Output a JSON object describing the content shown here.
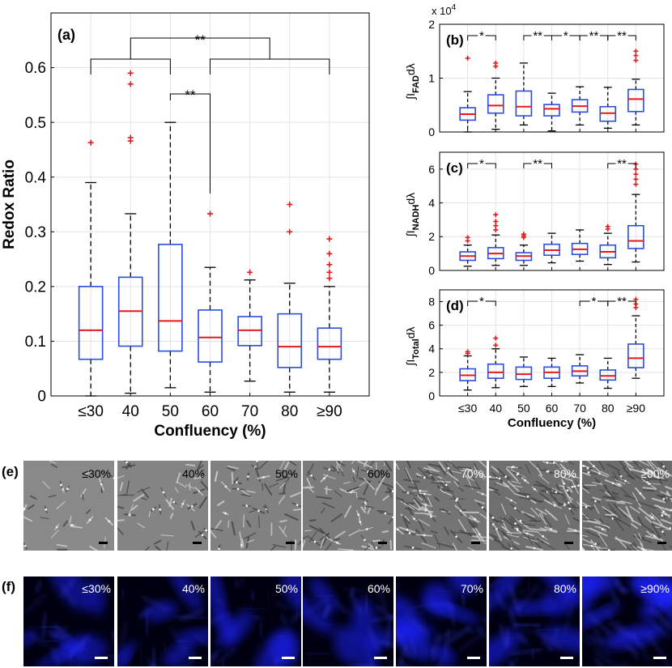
{
  "chart_data": [
    {
      "id": "a",
      "type": "boxplot",
      "panel_label": "(a)",
      "xlabel": "Confluency (%)",
      "ylabel": "Redox Ratio",
      "categories": [
        "≤30",
        "40",
        "50",
        "60",
        "70",
        "80",
        "≥90"
      ],
      "ylim": [
        0,
        0.7
      ],
      "yticks": [
        "0",
        "0.1",
        "0.2",
        "0.3",
        "0.4",
        "0.5",
        "0.6"
      ],
      "boxes": [
        {
          "q1": 0.067,
          "median": 0.12,
          "q3": 0.2,
          "lo": 0.0,
          "hi": 0.39,
          "outliers": [
            0.463
          ]
        },
        {
          "q1": 0.091,
          "median": 0.155,
          "q3": 0.217,
          "lo": 0.005,
          "hi": 0.333,
          "outliers": [
            0.466,
            0.472,
            0.57,
            0.59
          ]
        },
        {
          "q1": 0.082,
          "median": 0.137,
          "q3": 0.277,
          "lo": 0.015,
          "hi": 0.5,
          "outliers": []
        },
        {
          "q1": 0.062,
          "median": 0.107,
          "q3": 0.157,
          "lo": 0.007,
          "hi": 0.235,
          "outliers": [
            0.333
          ]
        },
        {
          "q1": 0.092,
          "median": 0.12,
          "q3": 0.145,
          "lo": 0.027,
          "hi": 0.212,
          "outliers": [
            0.226
          ]
        },
        {
          "q1": 0.052,
          "median": 0.09,
          "q3": 0.15,
          "lo": 0.007,
          "hi": 0.206,
          "outliers": [
            0.3,
            0.35
          ]
        },
        {
          "q1": 0.067,
          "median": 0.09,
          "q3": 0.124,
          "lo": 0.007,
          "hi": 0.2,
          "outliers": [
            0.215,
            0.226,
            0.24,
            0.26,
            0.287
          ]
        }
      ],
      "significance": [
        {
          "from": 0,
          "to": 2,
          "label": "**"
        },
        {
          "from": 3,
          "to": 6,
          "label": "**"
        },
        {
          "from": 2,
          "to": 3,
          "label": "**"
        }
      ]
    },
    {
      "id": "b",
      "type": "boxplot",
      "panel_label": "(b)",
      "ylabel_main": "∫I",
      "ylabel_sub": "FAD",
      "ylabel_tail": "dλ",
      "exponent_label": "x 10",
      "exponent_power": "4",
      "categories": [
        "≤30",
        "40",
        "50",
        "60",
        "70",
        "80",
        "≥90"
      ],
      "ylim": [
        0,
        2
      ],
      "yticks": [
        "0",
        "1",
        "2"
      ],
      "boxes": [
        {
          "q1": 0.22,
          "median": 0.33,
          "q3": 0.45,
          "lo": 0.0,
          "hi": 0.75,
          "outliers": [
            1.37
          ]
        },
        {
          "q1": 0.35,
          "median": 0.49,
          "q3": 0.69,
          "lo": 0.05,
          "hi": 1.0,
          "outliers": [
            1.22,
            1.28
          ]
        },
        {
          "q1": 0.3,
          "median": 0.47,
          "q3": 0.76,
          "lo": 0.13,
          "hi": 1.28,
          "outliers": []
        },
        {
          "q1": 0.3,
          "median": 0.43,
          "q3": 0.51,
          "lo": 0.02,
          "hi": 0.72,
          "outliers": []
        },
        {
          "q1": 0.37,
          "median": 0.48,
          "q3": 0.6,
          "lo": 0.13,
          "hi": 0.84,
          "outliers": []
        },
        {
          "q1": 0.2,
          "median": 0.35,
          "q3": 0.47,
          "lo": 0.07,
          "hi": 0.83,
          "outliers": []
        },
        {
          "q1": 0.38,
          "median": 0.61,
          "q3": 0.79,
          "lo": 0.13,
          "hi": 0.98,
          "outliers": [
            1.33,
            1.42,
            1.5
          ]
        }
      ],
      "significance": [
        {
          "from": 0,
          "to": 1,
          "label": "*"
        },
        {
          "from": 2,
          "to": 3,
          "label": "**"
        },
        {
          "from": 3,
          "to": 4,
          "label": "*"
        },
        {
          "from": 4,
          "to": 5,
          "label": "**"
        },
        {
          "from": 5,
          "to": 6,
          "label": "**"
        }
      ]
    },
    {
      "id": "c",
      "type": "boxplot",
      "panel_label": "(c)",
      "ylabel_main": "∫I",
      "ylabel_sub": "NADH",
      "ylabel_tail": "dλ",
      "categories": [
        "≤30",
        "40",
        "50",
        "60",
        "70",
        "80",
        "≥90"
      ],
      "ylim": [
        0,
        7
      ],
      "yticks": [
        "0",
        "2",
        "4",
        "6"
      ],
      "boxes": [
        {
          "q1": 0.6,
          "median": 0.85,
          "q3": 1.1,
          "lo": 0.25,
          "hi": 1.5,
          "outliers": [
            1.75,
            1.95
          ]
        },
        {
          "q1": 0.7,
          "median": 1.0,
          "q3": 1.35,
          "lo": 0.3,
          "hi": 2.1,
          "outliers": [
            2.4,
            2.65,
            2.9,
            3.3
          ]
        },
        {
          "q1": 0.6,
          "median": 0.85,
          "q3": 1.05,
          "lo": 0.3,
          "hi": 1.5,
          "outliers": [
            1.95,
            2.05,
            2.15
          ]
        },
        {
          "q1": 0.9,
          "median": 1.2,
          "q3": 1.55,
          "lo": 0.45,
          "hi": 2.2,
          "outliers": []
        },
        {
          "q1": 0.95,
          "median": 1.25,
          "q3": 1.6,
          "lo": 0.55,
          "hi": 2.4,
          "outliers": []
        },
        {
          "q1": 0.75,
          "median": 1.1,
          "q3": 1.5,
          "lo": 0.35,
          "hi": 2.2,
          "outliers": [
            2.45,
            2.6
          ]
        },
        {
          "q1": 1.3,
          "median": 1.75,
          "q3": 2.65,
          "lo": 0.5,
          "hi": 4.5,
          "outliers": [
            5.1,
            5.4,
            5.7,
            6.0,
            6.3
          ]
        }
      ],
      "significance": [
        {
          "from": 0,
          "to": 1,
          "label": "*"
        },
        {
          "from": 2,
          "to": 3,
          "label": "**"
        },
        {
          "from": 5,
          "to": 6,
          "label": "**"
        }
      ]
    },
    {
      "id": "d",
      "type": "boxplot",
      "panel_label": "(d)",
      "ylabel_main": "∫I",
      "ylabel_sub": "Total",
      "ylabel_tail": "dλ",
      "xlabel": "Confluency (%)",
      "categories": [
        "≤30",
        "40",
        "50",
        "60",
        "70",
        "80",
        "≥90"
      ],
      "ylim": [
        0,
        9
      ],
      "yticks": [
        "0",
        "2",
        "4",
        "6",
        "8"
      ],
      "boxes": [
        {
          "q1": 1.3,
          "median": 1.75,
          "q3": 2.3,
          "lo": 0.5,
          "hi": 3.4,
          "outliers": [
            3.6,
            3.75
          ]
        },
        {
          "q1": 1.5,
          "median": 2.0,
          "q3": 2.7,
          "lo": 0.7,
          "hi": 4.0,
          "outliers": [
            4.3,
            4.9
          ]
        },
        {
          "q1": 1.4,
          "median": 1.85,
          "q3": 2.45,
          "lo": 0.8,
          "hi": 3.3,
          "outliers": []
        },
        {
          "q1": 1.5,
          "median": 2.0,
          "q3": 2.45,
          "lo": 0.8,
          "hi": 3.2,
          "outliers": []
        },
        {
          "q1": 1.7,
          "median": 2.1,
          "q3": 2.55,
          "lo": 1.1,
          "hi": 3.5,
          "outliers": []
        },
        {
          "q1": 1.35,
          "median": 1.7,
          "q3": 2.2,
          "lo": 0.65,
          "hi": 3.2,
          "outliers": []
        },
        {
          "q1": 2.4,
          "median": 3.2,
          "q3": 4.4,
          "lo": 1.5,
          "hi": 6.8,
          "outliers": [
            7.5,
            7.8,
            8.2
          ]
        }
      ],
      "significance": [
        {
          "from": 0,
          "to": 1,
          "label": "*"
        },
        {
          "from": 4,
          "to": 5,
          "label": "*"
        },
        {
          "from": 5,
          "to": 6,
          "label": "**"
        }
      ]
    }
  ],
  "panel_e": {
    "label": "(e)",
    "images": [
      {
        "text": "≤30%",
        "density": 0.1
      },
      {
        "text": "40%",
        "density": 0.22
      },
      {
        "text": "50%",
        "density": 0.32
      },
      {
        "text": "60%",
        "density": 0.48
      },
      {
        "text": "70%",
        "density": 0.7
      },
      {
        "text": "80%",
        "density": 0.82
      },
      {
        "text": "≥90%",
        "density": 0.95
      }
    ]
  },
  "panel_f": {
    "label": "(f)",
    "images": [
      {
        "text": "≤30%",
        "intensity": 0.45
      },
      {
        "text": "40%",
        "intensity": 0.5
      },
      {
        "text": "50%",
        "intensity": 0.55
      },
      {
        "text": "60%",
        "intensity": 0.55
      },
      {
        "text": "70%",
        "intensity": 0.7
      },
      {
        "text": "80%",
        "intensity": 0.65
      },
      {
        "text": "≥90%",
        "intensity": 0.9
      }
    ]
  },
  "colors": {
    "box": "#2b4de0",
    "median": "#e31a1c",
    "outlier": "#e31a1c",
    "grid": "#e3e3e3",
    "fluor": "#1e22ff"
  }
}
